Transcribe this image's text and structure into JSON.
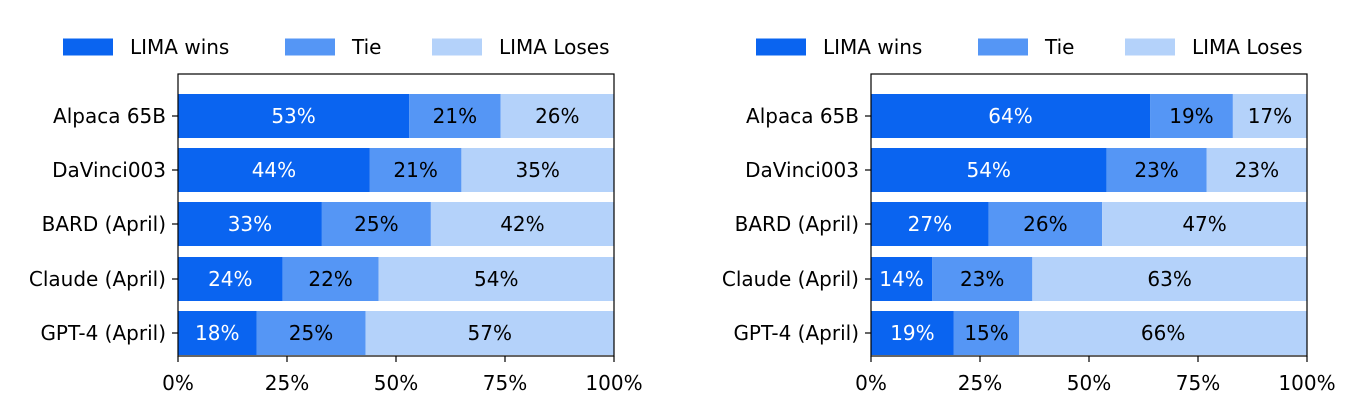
{
  "chart_data": [
    {
      "type": "bar",
      "orientation": "horizontal",
      "stacked": true,
      "categories": [
        "Alpaca 65B",
        "DaVinci003",
        "BARD (April)",
        "Claude (April)",
        "GPT-4 (April)"
      ],
      "series": [
        {
          "name": "LIMA wins",
          "color": "#0a64f0",
          "label_color": "#ffffff",
          "values": [
            53,
            44,
            33,
            24,
            18
          ],
          "labels": [
            "53%",
            "44%",
            "33%",
            "24%",
            "18%"
          ]
        },
        {
          "name": "Tie",
          "color": "#5596f5",
          "label_color": "#000000",
          "values": [
            21,
            21,
            25,
            22,
            25
          ],
          "labels": [
            "21%",
            "21%",
            "25%",
            "22%",
            "25%"
          ]
        },
        {
          "name": "LIMA Loses",
          "color": "#b4d2fa",
          "label_color": "#000000",
          "values": [
            26,
            35,
            42,
            54,
            57
          ],
          "labels": [
            "26%",
            "35%",
            "42%",
            "54%",
            "57%"
          ]
        }
      ],
      "xlim": [
        0,
        100
      ],
      "xticks": [
        0,
        25,
        50,
        75,
        100
      ],
      "xtick_labels": [
        "0%",
        "25%",
        "50%",
        "75%",
        "100%"
      ],
      "legend": "top",
      "grid": false
    },
    {
      "type": "bar",
      "orientation": "horizontal",
      "stacked": true,
      "categories": [
        "Alpaca 65B",
        "DaVinci003",
        "BARD (April)",
        "Claude (April)",
        "GPT-4 (April)"
      ],
      "series": [
        {
          "name": "LIMA wins",
          "color": "#0a64f0",
          "label_color": "#ffffff",
          "values": [
            64,
            54,
            27,
            14,
            19
          ],
          "labels": [
            "64%",
            "54%",
            "27%",
            "14%",
            "19%"
          ]
        },
        {
          "name": "Tie",
          "color": "#5596f5",
          "label_color": "#000000",
          "values": [
            19,
            23,
            26,
            23,
            15
          ],
          "labels": [
            "19%",
            "23%",
            "26%",
            "23%",
            "15%"
          ]
        },
        {
          "name": "LIMA Loses",
          "color": "#b4d2fa",
          "label_color": "#000000",
          "values": [
            17,
            23,
            47,
            63,
            66
          ],
          "labels": [
            "17%",
            "23%",
            "47%",
            "63%",
            "66%"
          ]
        }
      ],
      "xlim": [
        0,
        100
      ],
      "xticks": [
        0,
        25,
        50,
        75,
        100
      ],
      "xtick_labels": [
        "0%",
        "25%",
        "50%",
        "75%",
        "100%"
      ],
      "legend": "top",
      "grid": false
    }
  ]
}
